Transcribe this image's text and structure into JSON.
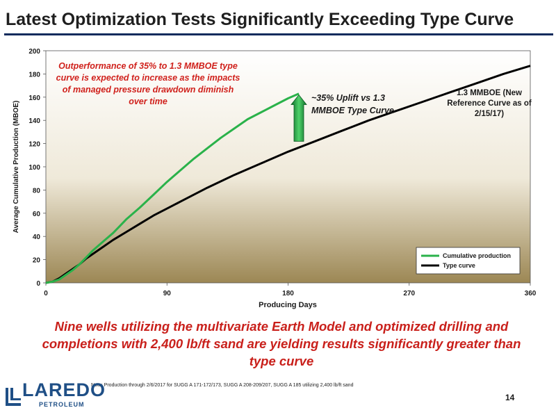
{
  "slide": {
    "title": "Latest Optimization Tests Significantly Exceeding Type Curve",
    "summary": "Nine wells utilizing the multivariate Earth Model and optimized drilling and completions with 2,400 lb/ft sand are yielding results significantly greater than type curve",
    "footnote": "Note: Production through 2/6/2017 for SUGG A 171-172/173, SUGG A 208-209/207, SUGG A 185 utilizing 2,400 lb/ft sand",
    "page_number": "14",
    "logo": {
      "word": "LAREDO",
      "subtext": "PETROLEUM"
    }
  },
  "annotations": {
    "main_callout": "Outperformance of 35% to 1.3 MMBOE type curve is expected to increase as the impacts of managed pressure drawdown diminish over time",
    "uplift_callout": "~35% Uplift vs 1.3 MMBOE Type Curve",
    "type_curve_callout": "1.3 MMBOE (New Reference Curve as of 2/15/17)"
  },
  "colors": {
    "accent_red": "#c9201b",
    "title_rule": "#0d2a5c",
    "cumulative": "#2ab24a",
    "type_curve": "#000000",
    "arrow": "#1f9a3a",
    "logo_blue": "#1f4f86"
  },
  "chart_data": {
    "type": "line",
    "title": "",
    "xlabel": "Producing Days",
    "ylabel": "Average Cumulative Production (MBOE)",
    "xlim": [
      0,
      360
    ],
    "ylim": [
      0,
      200
    ],
    "x_ticks": [
      "0",
      "90",
      "180",
      "270",
      "360"
    ],
    "y_ticks": [
      "0",
      "20",
      "40",
      "60",
      "80",
      "100",
      "120",
      "140",
      "160",
      "180",
      "200"
    ],
    "legend_position": "bottom-right",
    "grid": false,
    "series": [
      {
        "name": "Cumulative production",
        "x": [
          0,
          5,
          10,
          15,
          20,
          25,
          30,
          35,
          40,
          45,
          50,
          55,
          60,
          70,
          80,
          90,
          100,
          110,
          120,
          130,
          140,
          150,
          160,
          170,
          180,
          188
        ],
        "y": [
          0,
          1,
          3,
          7,
          11,
          16,
          22,
          28,
          33,
          38,
          43,
          49,
          55,
          65,
          76,
          87,
          97,
          107,
          116,
          125,
          133,
          141,
          147,
          153,
          159,
          163
        ]
      },
      {
        "name": "Type curve",
        "x": [
          0,
          5,
          10,
          15,
          20,
          25,
          30,
          40,
          50,
          60,
          70,
          80,
          90,
          100,
          120,
          140,
          160,
          180,
          200,
          220,
          240,
          260,
          280,
          300,
          320,
          340,
          360
        ],
        "y": [
          0,
          1,
          4,
          8,
          12,
          16,
          21,
          29,
          37,
          44,
          51,
          58,
          64,
          70,
          82,
          93,
          103,
          113,
          122,
          131,
          140,
          148,
          156,
          164,
          172,
          180,
          187
        ]
      }
    ],
    "uplift_arrow": {
      "x": 188,
      "y_from": 122,
      "y_to": 162
    }
  }
}
